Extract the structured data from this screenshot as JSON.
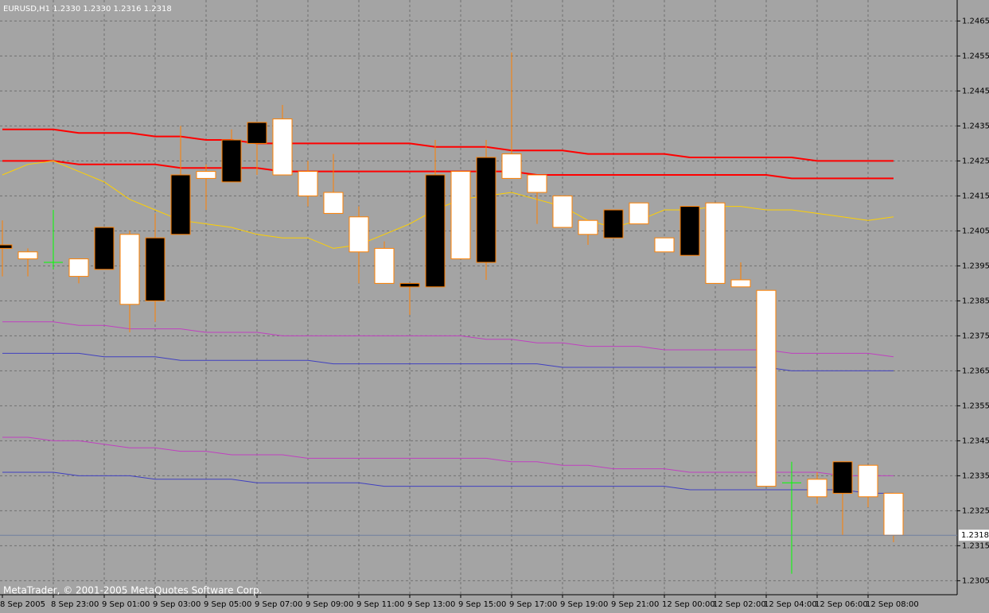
{
  "chart_data": {
    "type": "candlestick",
    "title": "EURUSD,H1  1.2330 1.2330 1.2316 1.2318",
    "footer": "MetaTrader, © 2001-2005 MetaQuotes Software Corp.",
    "categories": [
      "8 Sep 2005",
      null,
      "8 Sep 23:00",
      null,
      "9 Sep 01:00",
      null,
      "9 Sep 03:00",
      null,
      "9 Sep 05:00",
      null,
      "9 Sep 07:00",
      null,
      "9 Sep 09:00",
      null,
      "9 Sep 11:00",
      null,
      "9 Sep 13:00",
      null,
      "9 Sep 15:00",
      null,
      "9 Sep 17:00",
      null,
      "9 Sep 19:00",
      null,
      "9 Sep 21:00",
      null,
      "12 Sep 00:00",
      null,
      "12 Sep 02:00",
      null,
      "12 Sep 04:00",
      null,
      "12 Sep 06:00",
      null,
      "12 Sep 08:00",
      null
    ],
    "open": [
      1.24,
      1.2399,
      1.2396,
      1.2397,
      1.2394,
      1.2404,
      1.2385,
      1.2404,
      1.2422,
      1.2419,
      1.243,
      1.2437,
      1.2422,
      1.2416,
      1.2409,
      1.24,
      1.2389,
      1.2389,
      1.2422,
      1.2396,
      1.2427,
      1.2421,
      1.2415,
      1.2408,
      1.2403,
      1.2413,
      1.2403,
      1.2398,
      1.2413,
      1.2391,
      1.2388,
      1.2333,
      1.2334,
      1.233,
      1.2338,
      1.233
    ],
    "high": [
      1.2408,
      1.24,
      1.2411,
      1.2397,
      1.2406,
      1.2405,
      1.241,
      1.2435,
      1.2424,
      1.2434,
      1.2436,
      1.2441,
      1.2425,
      1.2427,
      1.2412,
      1.2402,
      1.239,
      1.2431,
      1.2422,
      1.2431,
      1.2456,
      1.2421,
      1.2415,
      1.2408,
      1.2411,
      1.2413,
      1.2403,
      1.2412,
      1.2413,
      1.2396,
      1.2388,
      1.2339,
      1.2336,
      1.2339,
      1.2338,
      1.233
    ],
    "low": [
      1.2392,
      1.2392,
      1.2394,
      1.239,
      1.2394,
      1.2376,
      1.2379,
      1.2404,
      1.2411,
      1.2419,
      1.2421,
      1.2421,
      1.2412,
      1.241,
      1.239,
      1.239,
      1.2381,
      1.2389,
      1.2397,
      1.2391,
      1.242,
      1.2407,
      1.2406,
      1.2401,
      1.2403,
      1.2407,
      1.2399,
      1.2398,
      1.239,
      1.2389,
      1.2332,
      1.2307,
      1.2327,
      1.2318,
      1.2326,
      1.2316
    ],
    "close": [
      1.2401,
      1.2397,
      1.2396,
      1.2392,
      1.2406,
      1.2384,
      1.2403,
      1.2421,
      1.242,
      1.2431,
      1.2436,
      1.2421,
      1.2415,
      1.241,
      1.2399,
      1.239,
      1.239,
      1.2421,
      1.2397,
      1.2426,
      1.242,
      1.2416,
      1.2406,
      1.2404,
      1.2411,
      1.2407,
      1.2399,
      1.2412,
      1.239,
      1.2389,
      1.2332,
      1.2333,
      1.2329,
      1.2339,
      1.2329,
      1.2318
    ],
    "indicators": [
      {
        "color": "#ff0000",
        "values": [
          1.2434,
          1.2434,
          1.2434,
          1.2433,
          1.2433,
          1.2433,
          1.2432,
          1.2432,
          1.2431,
          1.2431,
          1.243,
          1.243,
          1.243,
          1.243,
          1.243,
          1.243,
          1.243,
          1.2429,
          1.2429,
          1.2429,
          1.2428,
          1.2428,
          1.2428,
          1.2427,
          1.2427,
          1.2427,
          1.2427,
          1.2426,
          1.2426,
          1.2426,
          1.2426,
          1.2426,
          1.2425,
          1.2425,
          1.2425,
          1.2425
        ]
      },
      {
        "color": "#ff0000",
        "values": [
          1.2425,
          1.2425,
          1.2425,
          1.2424,
          1.2424,
          1.2424,
          1.2424,
          1.2423,
          1.2423,
          1.2423,
          1.2423,
          1.2422,
          1.2422,
          1.2422,
          1.2422,
          1.2422,
          1.2422,
          1.2422,
          1.2422,
          1.2422,
          1.2422,
          1.2421,
          1.2421,
          1.2421,
          1.2421,
          1.2421,
          1.2421,
          1.2421,
          1.2421,
          1.2421,
          1.2421,
          1.242,
          1.242,
          1.242,
          1.242,
          1.242
        ]
      },
      {
        "color": "#c040c0",
        "values": [
          1.2379,
          1.2379,
          1.2379,
          1.2378,
          1.2378,
          1.2377,
          1.2377,
          1.2377,
          1.2376,
          1.2376,
          1.2376,
          1.2375,
          1.2375,
          1.2375,
          1.2375,
          1.2375,
          1.2375,
          1.2375,
          1.2375,
          1.2374,
          1.2374,
          1.2373,
          1.2373,
          1.2372,
          1.2372,
          1.2372,
          1.2371,
          1.2371,
          1.2371,
          1.2371,
          1.2371,
          1.237,
          1.237,
          1.237,
          1.237,
          1.2369
        ]
      },
      {
        "color": "#4040c0",
        "values": [
          1.237,
          1.237,
          1.237,
          1.237,
          1.2369,
          1.2369,
          1.2369,
          1.2368,
          1.2368,
          1.2368,
          1.2368,
          1.2368,
          1.2368,
          1.2367,
          1.2367,
          1.2367,
          1.2367,
          1.2367,
          1.2367,
          1.2367,
          1.2367,
          1.2367,
          1.2366,
          1.2366,
          1.2366,
          1.2366,
          1.2366,
          1.2366,
          1.2366,
          1.2366,
          1.2366,
          1.2365,
          1.2365,
          1.2365,
          1.2365,
          1.2365
        ]
      },
      {
        "color": "#c040c0",
        "values": [
          1.2346,
          1.2346,
          1.2345,
          1.2345,
          1.2344,
          1.2343,
          1.2343,
          1.2342,
          1.2342,
          1.2341,
          1.2341,
          1.2341,
          1.234,
          1.234,
          1.234,
          1.234,
          1.234,
          1.234,
          1.234,
          1.234,
          1.2339,
          1.2339,
          1.2338,
          1.2338,
          1.2337,
          1.2337,
          1.2337,
          1.2336,
          1.2336,
          1.2336,
          1.2336,
          1.2336,
          1.2336,
          1.2335,
          1.2335,
          1.2335
        ]
      },
      {
        "color": "#4040c0",
        "values": [
          1.2336,
          1.2336,
          1.2336,
          1.2335,
          1.2335,
          1.2335,
          1.2334,
          1.2334,
          1.2334,
          1.2334,
          1.2333,
          1.2333,
          1.2333,
          1.2333,
          1.2333,
          1.2332,
          1.2332,
          1.2332,
          1.2332,
          1.2332,
          1.2332,
          1.2332,
          1.2332,
          1.2332,
          1.2332,
          1.2332,
          1.2332,
          1.2331,
          1.2331,
          1.2331,
          1.2331,
          1.2331,
          1.2331,
          1.2331,
          1.233,
          1.233
        ]
      },
      {
        "color": "#ffd000",
        "values": [
          1.2421,
          1.2424,
          1.2425,
          1.2422,
          1.2419,
          1.2414,
          1.2411,
          1.2408,
          1.2407,
          1.2406,
          1.2404,
          1.2403,
          1.2403,
          1.24,
          1.2401,
          1.2404,
          1.2407,
          1.2411,
          1.2414,
          1.2415,
          1.2416,
          1.2414,
          1.2412,
          1.2408,
          1.2406,
          1.2408,
          1.2411,
          1.2411,
          1.2412,
          1.2412,
          1.2411,
          1.2411,
          1.241,
          1.2409,
          1.2408,
          1.2409
        ]
      }
    ],
    "last_price": 1.2318,
    "ylim": [
      1.2301,
      1.2471
    ],
    "yticks": [
      1.2305,
      1.2315,
      1.2325,
      1.2335,
      1.2345,
      1.2355,
      1.2365,
      1.2375,
      1.2385,
      1.2395,
      1.2405,
      1.2415,
      1.2425,
      1.2435,
      1.2445,
      1.2455,
      1.2465
    ],
    "grid": true
  }
}
